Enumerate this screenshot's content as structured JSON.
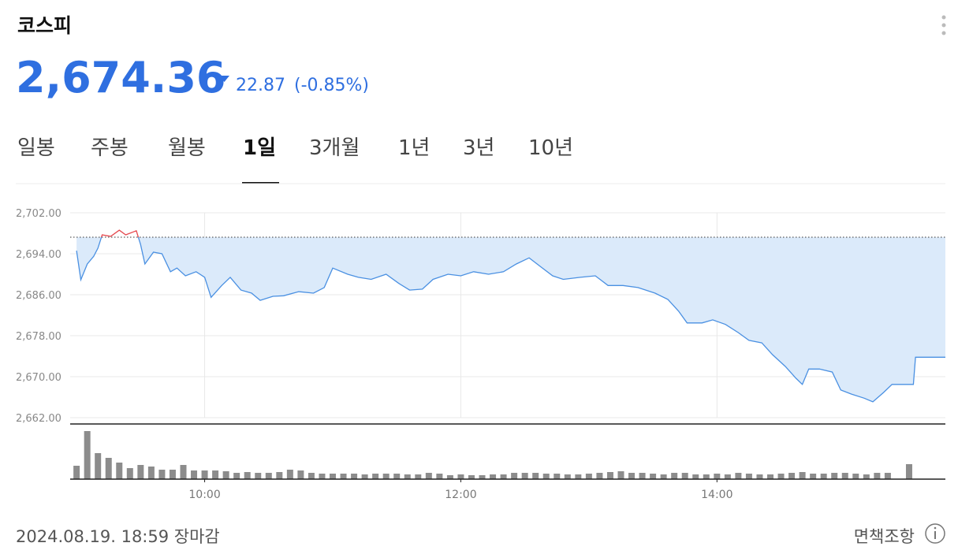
{
  "header": {
    "title": "코스피",
    "price": "2,674.36",
    "change": "22.87",
    "change_pct": "(-0.85%)"
  },
  "tabs": {
    "items": [
      "일봉",
      "주봉",
      "월봉",
      "1일",
      "3개월",
      "1년",
      "3년",
      "10년"
    ],
    "active": 3
  },
  "chart_data": [
    {
      "type": "line",
      "color": "#4a90e2",
      "fill_color": "#dbeafa",
      "up_color": "#e5484d",
      "reference": 2697.23,
      "x": [
        540,
        542,
        545,
        548,
        550,
        552,
        556,
        560,
        563,
        568,
        570,
        572,
        576,
        580,
        584,
        587,
        591,
        596,
        600,
        603,
        608,
        612,
        617,
        622,
        626,
        632,
        637,
        644,
        651,
        656,
        660,
        667,
        672,
        678,
        685,
        691,
        696,
        702,
        707,
        714,
        720,
        726,
        733,
        740,
        746,
        752,
        757,
        763,
        768,
        776,
        783,
        789,
        796,
        803,
        811,
        817,
        822,
        826,
        833,
        838,
        844,
        850,
        855,
        861,
        866,
        872,
        877,
        880,
        883,
        888,
        894,
        898,
        903,
        909,
        913,
        918,
        922,
        932,
        933,
        947
      ],
      "values": [
        2694.6,
        2688.9,
        2692.0,
        2693.5,
        2695.1,
        2697.7,
        2697.4,
        2698.6,
        2697.7,
        2698.5,
        2695.8,
        2692.0,
        2694.3,
        2694.0,
        2690.5,
        2691.2,
        2689.7,
        2690.5,
        2689.4,
        2685.5,
        2687.8,
        2689.4,
        2686.9,
        2686.3,
        2684.9,
        2685.7,
        2685.8,
        2686.6,
        2686.3,
        2687.4,
        2691.2,
        2690.0,
        2689.4,
        2689.0,
        2690.0,
        2688.2,
        2686.9,
        2687.1,
        2689.0,
        2690.0,
        2689.7,
        2690.5,
        2690.0,
        2690.5,
        2692.0,
        2693.2,
        2691.6,
        2689.7,
        2689.0,
        2689.4,
        2689.7,
        2687.8,
        2687.8,
        2687.4,
        2686.3,
        2685.1,
        2682.8,
        2680.5,
        2680.5,
        2681.1,
        2680.2,
        2678.6,
        2677.1,
        2676.6,
        2674.3,
        2672.0,
        2669.7,
        2668.5,
        2671.5,
        2671.5,
        2670.9,
        2667.4,
        2666.6,
        2665.8,
        2665.1,
        2666.9,
        2668.5,
        2668.5,
        2673.8,
        2673.8
      ],
      "xlim": [
        537,
        947
      ],
      "ylim": [
        2662,
        2702
      ],
      "yticks": [
        {
          "value": 2702,
          "label": "2,702.00"
        },
        {
          "value": 2694,
          "label": "2,694.00"
        },
        {
          "value": 2686,
          "label": "2,686.00"
        },
        {
          "value": 2678,
          "label": "2,678.00"
        },
        {
          "value": 2670,
          "label": "2,670.00"
        },
        {
          "value": 2662,
          "label": "2,662.00"
        }
      ],
      "grid": true
    },
    {
      "type": "bar",
      "color": "#8c8c8c",
      "x": [
        540,
        545,
        550,
        555,
        560,
        565,
        570,
        575,
        580,
        585,
        590,
        595,
        600,
        605,
        610,
        615,
        620,
        625,
        630,
        635,
        640,
        645,
        650,
        655,
        660,
        665,
        670,
        675,
        680,
        685,
        690,
        695,
        700,
        705,
        710,
        715,
        720,
        725,
        730,
        735,
        740,
        745,
        750,
        755,
        760,
        765,
        770,
        775,
        780,
        785,
        790,
        795,
        800,
        805,
        810,
        815,
        820,
        825,
        830,
        835,
        840,
        845,
        850,
        855,
        860,
        865,
        870,
        875,
        880,
        885,
        890,
        895,
        900,
        905,
        910,
        915,
        920,
        930
      ],
      "values": [
        17,
        61,
        33,
        27,
        21,
        14,
        18,
        16,
        12,
        12,
        18,
        11,
        11,
        11,
        10,
        8,
        9,
        8,
        8,
        9,
        12,
        11,
        8,
        7,
        7,
        7,
        7,
        6,
        7,
        7,
        7,
        6,
        6,
        8,
        7,
        5,
        6,
        5,
        5,
        6,
        6,
        8,
        8,
        8,
        7,
        7,
        6,
        6,
        7,
        8,
        9,
        10,
        8,
        8,
        7,
        6,
        8,
        8,
        6,
        6,
        7,
        6,
        8,
        7,
        6,
        6,
        7,
        8,
        9,
        7,
        7,
        8,
        8,
        7,
        6,
        8,
        8,
        19
      ],
      "xlim": [
        537,
        947
      ],
      "ylim": [
        0,
        62
      ],
      "xticks": [
        {
          "value": 600,
          "label": "10:00"
        },
        {
          "value": 720,
          "label": "12:00"
        },
        {
          "value": 840,
          "label": "14:00"
        }
      ]
    }
  ],
  "footer": {
    "timestamp": "2024.08.19. 18:59 장마감",
    "disclaimer": "면책조항"
  }
}
